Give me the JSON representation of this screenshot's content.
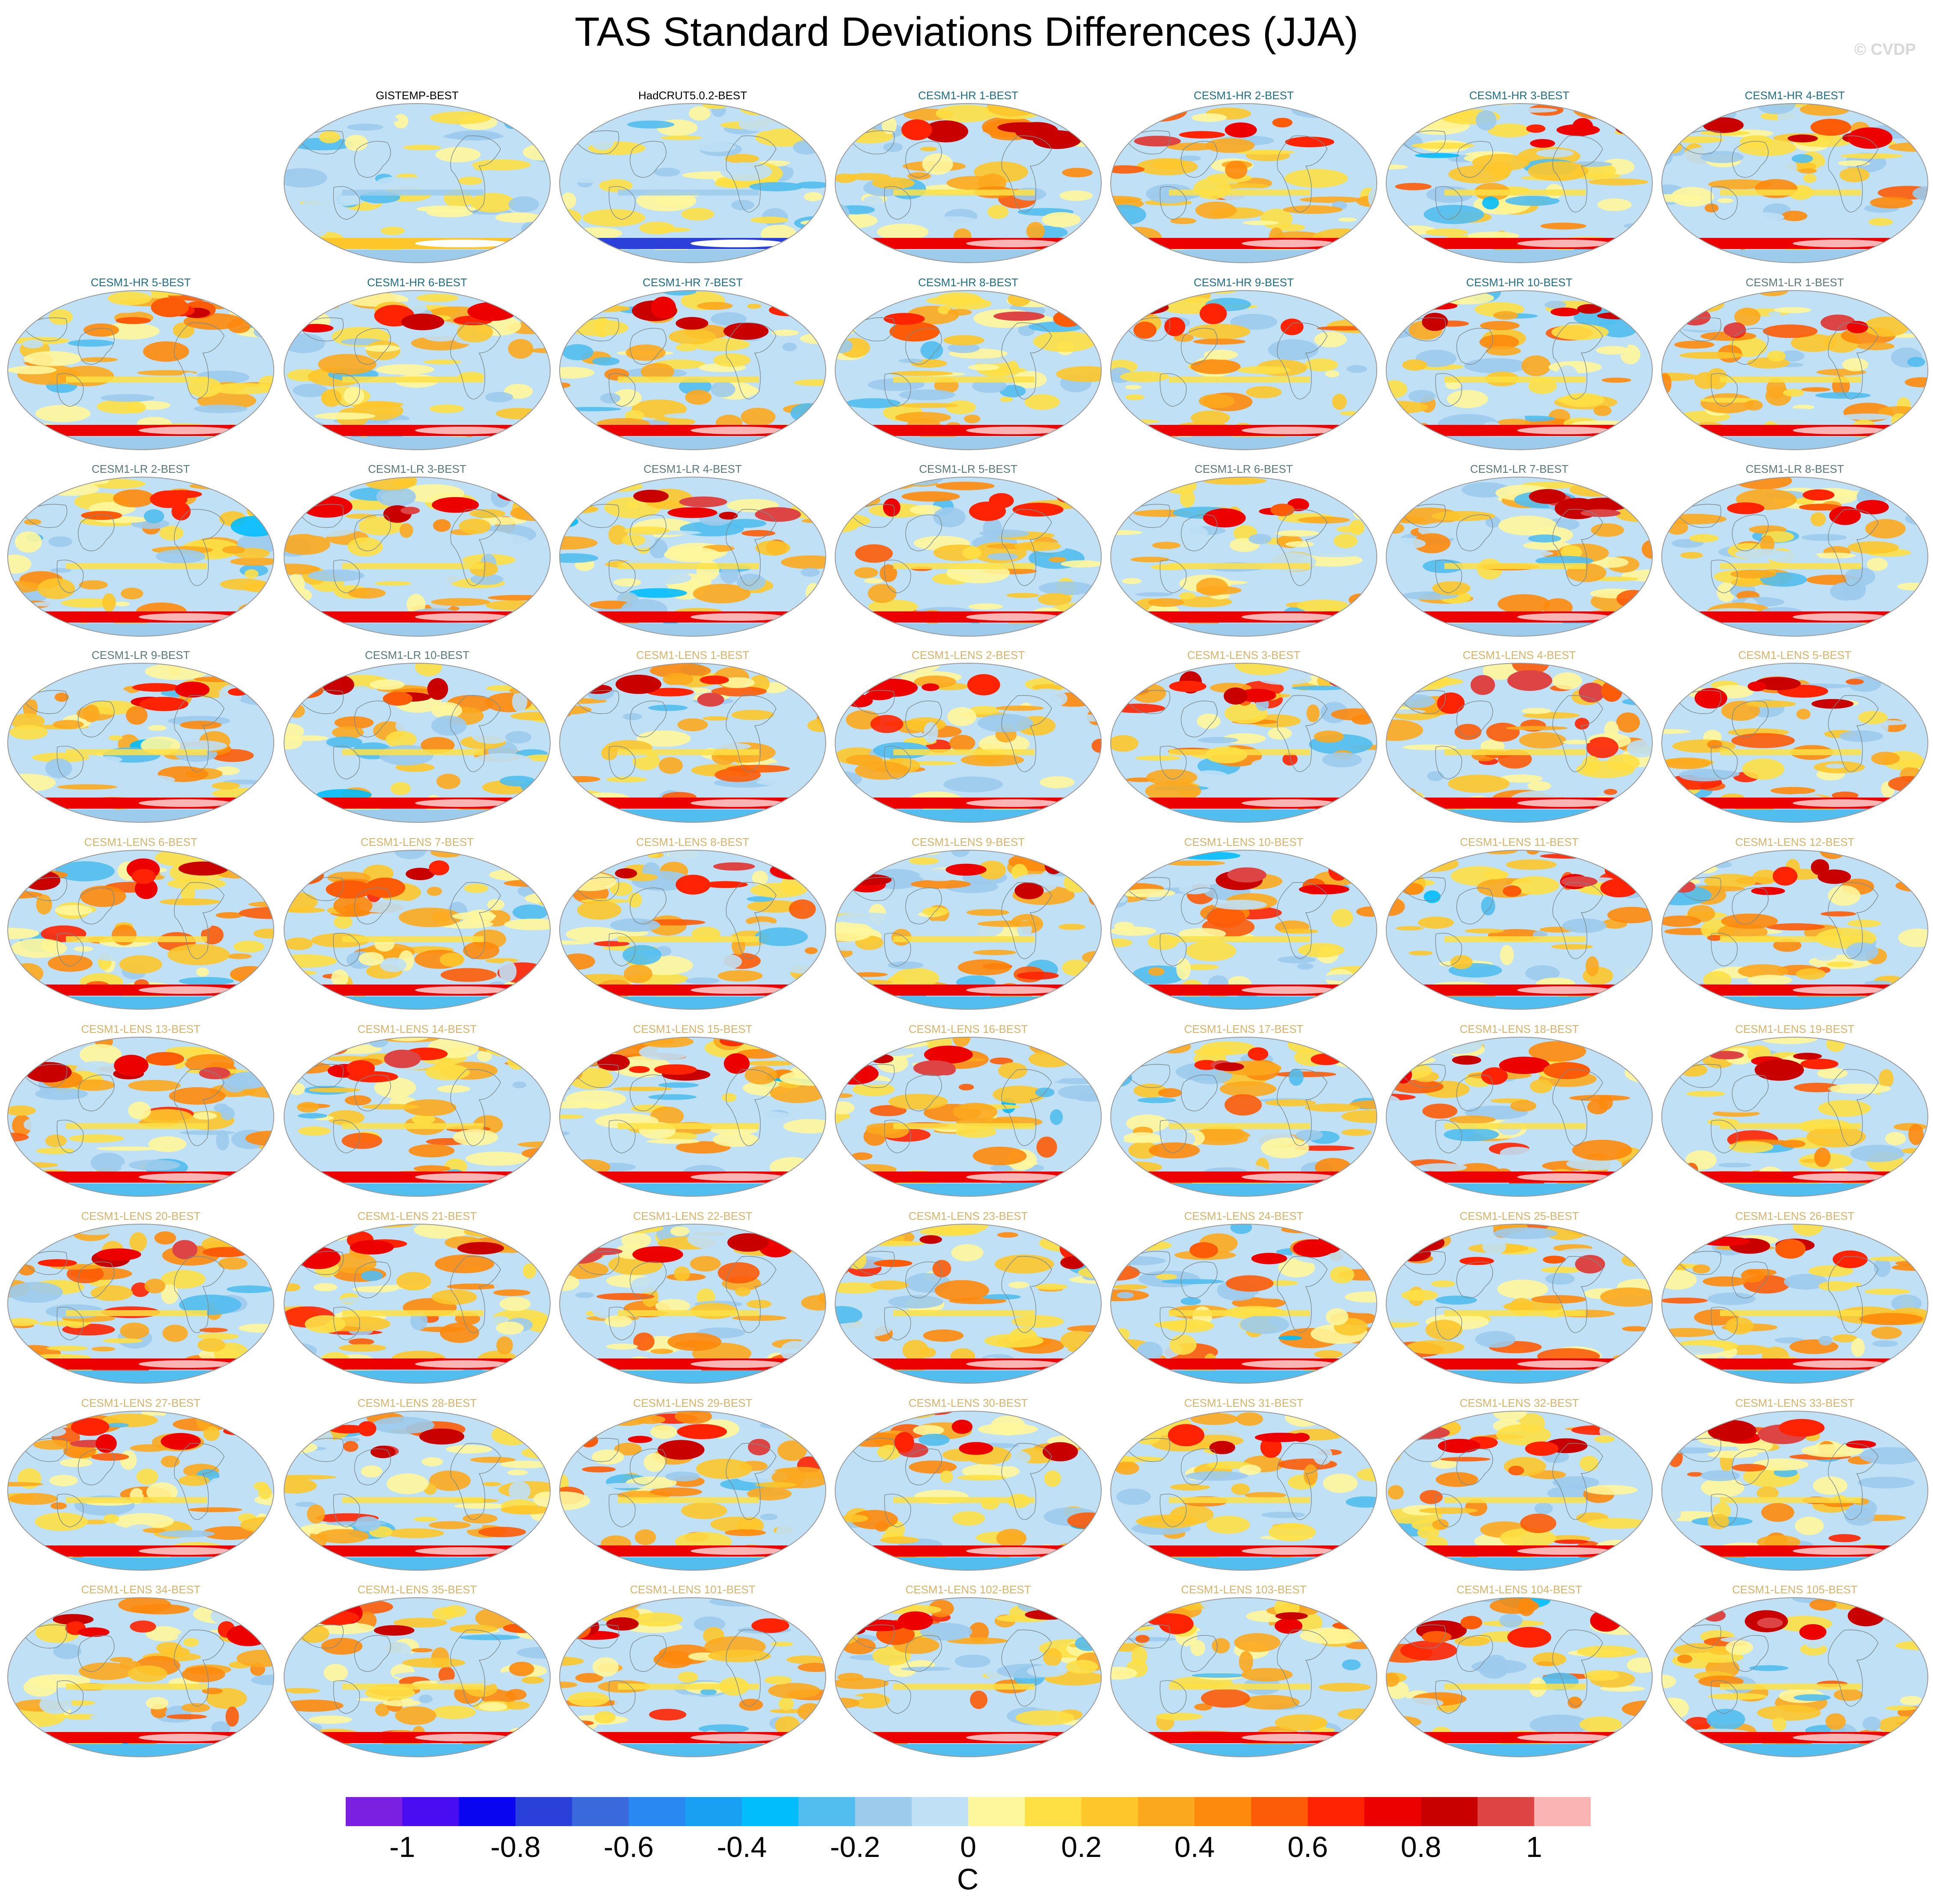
{
  "title": "TAS Standard Deviations Differences (JJA)",
  "copyright": "© CVDP",
  "chart_data": {
    "type": "heatmap",
    "title": "TAS Standard Deviations Differences (JJA)",
    "projection": "global map (Robinson-like), small multiples grid of 7 columns by 9 rows",
    "panels": [
      {
        "label": "GISTEMP-BEST",
        "group": "obs"
      },
      {
        "label": "HadCRUT5.0.2-BEST",
        "group": "obs"
      },
      {
        "label": "CESM1-HR 1-BEST",
        "group": "hr"
      },
      {
        "label": "CESM1-HR 2-BEST",
        "group": "hr"
      },
      {
        "label": "CESM1-HR 3-BEST",
        "group": "hr"
      },
      {
        "label": "CESM1-HR 4-BEST",
        "group": "hr"
      },
      {
        "label": "CESM1-HR 5-BEST",
        "group": "hr"
      },
      {
        "label": "CESM1-HR 6-BEST",
        "group": "hr"
      },
      {
        "label": "CESM1-HR 7-BEST",
        "group": "hr"
      },
      {
        "label": "CESM1-HR 8-BEST",
        "group": "hr"
      },
      {
        "label": "CESM1-HR 9-BEST",
        "group": "hr"
      },
      {
        "label": "CESM1-HR 10-BEST",
        "group": "hr"
      },
      {
        "label": "CESM1-LR 1-BEST",
        "group": "lr"
      },
      {
        "label": "CESM1-LR 2-BEST",
        "group": "lr"
      },
      {
        "label": "CESM1-LR 3-BEST",
        "group": "lr"
      },
      {
        "label": "CESM1-LR 4-BEST",
        "group": "lr"
      },
      {
        "label": "CESM1-LR 5-BEST",
        "group": "lr"
      },
      {
        "label": "CESM1-LR 6-BEST",
        "group": "lr"
      },
      {
        "label": "CESM1-LR 7-BEST",
        "group": "lr"
      },
      {
        "label": "CESM1-LR 8-BEST",
        "group": "lr"
      },
      {
        "label": "CESM1-LR 9-BEST",
        "group": "lr"
      },
      {
        "label": "CESM1-LR 10-BEST",
        "group": "lr"
      },
      {
        "label": "CESM1-LENS 1-BEST",
        "group": "lens"
      },
      {
        "label": "CESM1-LENS 2-BEST",
        "group": "lens"
      },
      {
        "label": "CESM1-LENS 3-BEST",
        "group": "lens"
      },
      {
        "label": "CESM1-LENS 4-BEST",
        "group": "lens"
      },
      {
        "label": "CESM1-LENS 5-BEST",
        "group": "lens"
      },
      {
        "label": "CESM1-LENS 6-BEST",
        "group": "lens"
      },
      {
        "label": "CESM1-LENS 7-BEST",
        "group": "lens"
      },
      {
        "label": "CESM1-LENS 8-BEST",
        "group": "lens"
      },
      {
        "label": "CESM1-LENS 9-BEST",
        "group": "lens"
      },
      {
        "label": "CESM1-LENS 10-BEST",
        "group": "lens"
      },
      {
        "label": "CESM1-LENS 11-BEST",
        "group": "lens"
      },
      {
        "label": "CESM1-LENS 12-BEST",
        "group": "lens"
      },
      {
        "label": "CESM1-LENS 13-BEST",
        "group": "lens"
      },
      {
        "label": "CESM1-LENS 14-BEST",
        "group": "lens"
      },
      {
        "label": "CESM1-LENS 15-BEST",
        "group": "lens"
      },
      {
        "label": "CESM1-LENS 16-BEST",
        "group": "lens"
      },
      {
        "label": "CESM1-LENS 17-BEST",
        "group": "lens"
      },
      {
        "label": "CESM1-LENS 18-BEST",
        "group": "lens"
      },
      {
        "label": "CESM1-LENS 19-BEST",
        "group": "lens"
      },
      {
        "label": "CESM1-LENS 20-BEST",
        "group": "lens"
      },
      {
        "label": "CESM1-LENS 21-BEST",
        "group": "lens"
      },
      {
        "label": "CESM1-LENS 22-BEST",
        "group": "lens"
      },
      {
        "label": "CESM1-LENS 23-BEST",
        "group": "lens"
      },
      {
        "label": "CESM1-LENS 24-BEST",
        "group": "lens"
      },
      {
        "label": "CESM1-LENS 25-BEST",
        "group": "lens"
      },
      {
        "label": "CESM1-LENS 26-BEST",
        "group": "lens"
      },
      {
        "label": "CESM1-LENS 27-BEST",
        "group": "lens"
      },
      {
        "label": "CESM1-LENS 28-BEST",
        "group": "lens"
      },
      {
        "label": "CESM1-LENS 29-BEST",
        "group": "lens"
      },
      {
        "label": "CESM1-LENS 30-BEST",
        "group": "lens"
      },
      {
        "label": "CESM1-LENS 31-BEST",
        "group": "lens"
      },
      {
        "label": "CESM1-LENS 32-BEST",
        "group": "lens"
      },
      {
        "label": "CESM1-LENS 33-BEST",
        "group": "lens"
      },
      {
        "label": "CESM1-LENS 34-BEST",
        "group": "lens"
      },
      {
        "label": "CESM1-LENS 35-BEST",
        "group": "lens"
      },
      {
        "label": "CESM1-LENS 101-BEST",
        "group": "lens"
      },
      {
        "label": "CESM1-LENS 102-BEST",
        "group": "lens"
      },
      {
        "label": "CESM1-LENS 103-BEST",
        "group": "lens"
      },
      {
        "label": "CESM1-LENS 104-BEST",
        "group": "lens"
      },
      {
        "label": "CESM1-LENS 105-BEST",
        "group": "lens"
      }
    ],
    "group_title_colors": {
      "obs": "#000000",
      "hr": "#1f6f8b",
      "lr": "#5a7a7a",
      "lens": "#d9b36a"
    },
    "colorbar": {
      "min": -1.1,
      "max": 1.1,
      "step": 0.1,
      "ticks": [
        "-1",
        "-0.8",
        "-0.6",
        "-0.4",
        "-0.2",
        "0",
        "0.2",
        "0.4",
        "0.6",
        "0.8",
        "1"
      ],
      "tick_values": [
        -1,
        -0.8,
        -0.6,
        -0.4,
        -0.2,
        0,
        0.2,
        0.4,
        0.6,
        0.8,
        1
      ],
      "unit": "C",
      "colors": [
        "#7b1fe0",
        "#4a0df2",
        "#0a05f0",
        "#2a40d8",
        "#3a68dd",
        "#2a88f2",
        "#1aa0f2",
        "#02bdfc",
        "#52bef0",
        "#9ccbec",
        "#bfe0f5",
        "#fff79c",
        "#fee045",
        "#fdc62b",
        "#fca81e",
        "#fd8a0c",
        "#fc5c08",
        "#fe2302",
        "#ec0000",
        "#c90000",
        "#dd4444",
        "#fbb4b4"
      ]
    }
  }
}
